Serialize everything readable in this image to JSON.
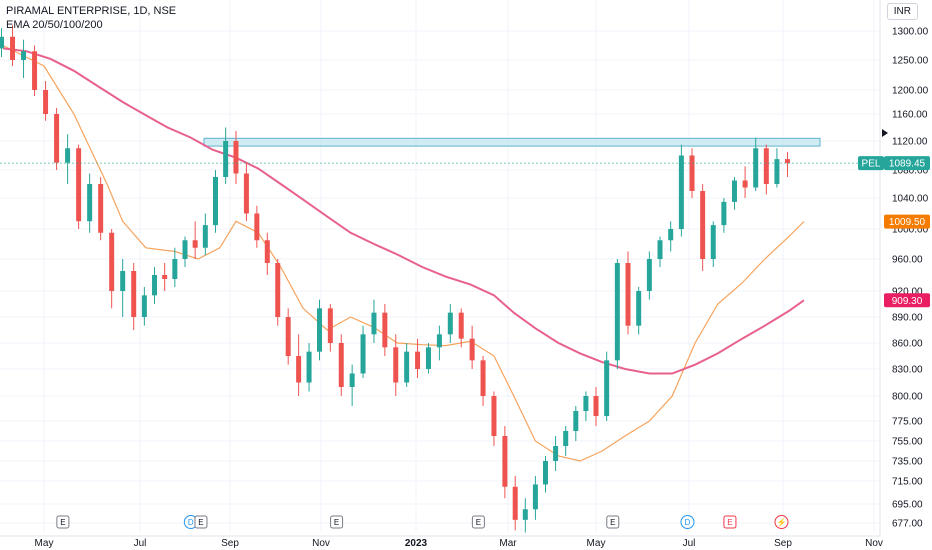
{
  "legend": {
    "symbol_line": "PIRAMAL ENTERPRISE, 1D, NSE",
    "indicator_line": "EMA 20/50/100/200"
  },
  "currency": "INR",
  "chart_data": {
    "type": "candlestick",
    "symbol": "PEL",
    "y_ticks": [
      677,
      695,
      715,
      735,
      755,
      775,
      800,
      830,
      860,
      890,
      920,
      960,
      1000,
      1040,
      1080,
      1120,
      1160,
      1200,
      1250,
      1300
    ],
    "y_tick_labels": [
      "677.00",
      "695.00",
      "715.00",
      "735.00",
      "755.00",
      "775.00",
      "800.00",
      "830.00",
      "860.00",
      "890.00",
      "920.00",
      "960.00",
      "1000.00",
      "1040.00",
      "1080.00",
      "1120.00",
      "1160.00",
      "1200.00",
      "1250.00",
      "1300.00"
    ],
    "x_labels": [
      "May",
      "Jul",
      "Sep",
      "Nov",
      "2023",
      "Mar",
      "May",
      "Jul",
      "Sep",
      "Nov"
    ],
    "x_dates": [
      "2022-05-01",
      "2022-07-01",
      "2022-09-01",
      "2022-11-01",
      "2023-01-01",
      "2023-03-01",
      "2023-05-01",
      "2023-07-01",
      "2023-09-01",
      "2023-11-01"
    ],
    "last_price": {
      "symbol": "PEL",
      "value": 1089.45,
      "label": "1089.45",
      "color": "#26a69a"
    },
    "price_labels": [
      {
        "value": 1009.5,
        "label": "1009.50",
        "color": "#f57c00"
      },
      {
        "value": 909.3,
        "label": "909.30",
        "color": "#e91e63"
      }
    ],
    "resistance_zone": {
      "low": 1113,
      "high": 1124,
      "color": "#b2dfeb"
    },
    "series": [
      {
        "name": "EMA 20",
        "color": "#f7a35c",
        "points": [
          [
            "2022-04-05",
            1275
          ],
          [
            "2022-05-01",
            1240
          ],
          [
            "2022-05-20",
            1160
          ],
          [
            "2022-06-10",
            1060
          ],
          [
            "2022-06-20",
            1010
          ],
          [
            "2022-07-05",
            975
          ],
          [
            "2022-07-25",
            970
          ],
          [
            "2022-08-10",
            960
          ],
          [
            "2022-08-25",
            975
          ],
          [
            "2022-09-05",
            1010
          ],
          [
            "2022-09-20",
            995
          ],
          [
            "2022-10-05",
            950
          ],
          [
            "2022-10-20",
            900
          ],
          [
            "2022-11-05",
            875
          ],
          [
            "2022-11-20",
            890
          ],
          [
            "2022-12-05",
            878
          ],
          [
            "2022-12-20",
            860
          ],
          [
            "2023-01-05",
            858
          ],
          [
            "2023-01-20",
            857
          ],
          [
            "2023-02-05",
            862
          ],
          [
            "2023-02-20",
            845
          ],
          [
            "2023-03-05",
            800
          ],
          [
            "2023-03-20",
            755
          ],
          [
            "2023-04-05",
            740
          ],
          [
            "2023-04-20",
            735
          ],
          [
            "2023-05-05",
            745
          ],
          [
            "2023-05-20",
            760
          ],
          [
            "2023-06-05",
            775
          ],
          [
            "2023-06-20",
            800
          ],
          [
            "2023-07-05",
            860
          ],
          [
            "2023-07-20",
            905
          ],
          [
            "2023-08-05",
            930
          ],
          [
            "2023-08-20",
            960
          ],
          [
            "2023-09-05",
            990
          ],
          [
            "2023-09-15",
            1009.5
          ]
        ]
      },
      {
        "name": "EMA 50",
        "color": "#e8608c",
        "points": [
          [
            "2022-04-05",
            1270
          ],
          [
            "2022-04-20",
            1265
          ],
          [
            "2022-05-05",
            1252
          ],
          [
            "2022-05-20",
            1232
          ],
          [
            "2022-06-05",
            1205
          ],
          [
            "2022-06-20",
            1180
          ],
          [
            "2022-07-05",
            1158
          ],
          [
            "2022-07-20",
            1140
          ],
          [
            "2022-08-05",
            1125
          ],
          [
            "2022-08-20",
            1108
          ],
          [
            "2022-09-05",
            1097
          ],
          [
            "2022-09-20",
            1082
          ],
          [
            "2022-10-05",
            1060
          ],
          [
            "2022-10-20",
            1038
          ],
          [
            "2022-11-05",
            1016
          ],
          [
            "2022-11-20",
            995
          ],
          [
            "2022-12-05",
            980
          ],
          [
            "2022-12-20",
            966
          ],
          [
            "2023-01-05",
            950
          ],
          [
            "2023-01-20",
            938
          ],
          [
            "2023-02-05",
            928
          ],
          [
            "2023-02-20",
            915
          ],
          [
            "2023-03-05",
            895
          ],
          [
            "2023-03-20",
            877
          ],
          [
            "2023-04-05",
            860
          ],
          [
            "2023-04-20",
            848
          ],
          [
            "2023-05-05",
            838
          ],
          [
            "2023-05-20",
            830
          ],
          [
            "2023-06-05",
            825
          ],
          [
            "2023-06-20",
            825
          ],
          [
            "2023-07-05",
            835
          ],
          [
            "2023-07-20",
            848
          ],
          [
            "2023-08-05",
            865
          ],
          [
            "2023-08-20",
            880
          ],
          [
            "2023-09-05",
            897
          ],
          [
            "2023-09-15",
            909.3
          ]
        ]
      }
    ],
    "candles": [
      [
        "2022-04-04",
        1270,
        1305,
        1255,
        1290
      ],
      [
        "2022-04-11",
        1290,
        1310,
        1240,
        1250
      ],
      [
        "2022-04-18",
        1250,
        1285,
        1220,
        1265
      ],
      [
        "2022-04-25",
        1265,
        1275,
        1190,
        1200
      ],
      [
        "2022-05-02",
        1200,
        1215,
        1150,
        1160
      ],
      [
        "2022-05-09",
        1160,
        1170,
        1080,
        1090
      ],
      [
        "2022-05-16",
        1090,
        1130,
        1060,
        1110
      ],
      [
        "2022-05-23",
        1110,
        1115,
        1000,
        1010
      ],
      [
        "2022-05-30",
        1010,
        1075,
        995,
        1060
      ],
      [
        "2022-06-06",
        1060,
        1070,
        985,
        995
      ],
      [
        "2022-06-13",
        995,
        1000,
        900,
        920
      ],
      [
        "2022-06-20",
        920,
        960,
        890,
        945
      ],
      [
        "2022-06-27",
        945,
        955,
        875,
        890
      ],
      [
        "2022-07-04",
        890,
        925,
        880,
        915
      ],
      [
        "2022-07-11",
        915,
        950,
        905,
        940
      ],
      [
        "2022-07-18",
        940,
        955,
        920,
        935
      ],
      [
        "2022-07-25",
        935,
        975,
        925,
        960
      ],
      [
        "2022-08-01",
        960,
        990,
        950,
        985
      ],
      [
        "2022-08-08",
        985,
        1010,
        960,
        975
      ],
      [
        "2022-08-15",
        975,
        1020,
        965,
        1005
      ],
      [
        "2022-08-22",
        1005,
        1080,
        995,
        1070
      ],
      [
        "2022-08-29",
        1070,
        1140,
        1060,
        1120
      ],
      [
        "2022-09-05",
        1120,
        1135,
        1060,
        1075
      ],
      [
        "2022-09-12",
        1075,
        1090,
        1010,
        1020
      ],
      [
        "2022-09-19",
        1020,
        1030,
        975,
        985
      ],
      [
        "2022-09-26",
        985,
        995,
        940,
        955
      ],
      [
        "2022-10-03",
        955,
        960,
        880,
        890
      ],
      [
        "2022-10-10",
        890,
        900,
        835,
        845
      ],
      [
        "2022-10-17",
        845,
        870,
        800,
        815
      ],
      [
        "2022-10-24",
        815,
        860,
        805,
        850
      ],
      [
        "2022-10-31",
        850,
        910,
        840,
        900
      ],
      [
        "2022-11-07",
        900,
        905,
        850,
        860
      ],
      [
        "2022-11-14",
        860,
        870,
        800,
        810
      ],
      [
        "2022-11-21",
        810,
        835,
        790,
        825
      ],
      [
        "2022-11-28",
        825,
        880,
        820,
        870
      ],
      [
        "2022-12-05",
        870,
        910,
        860,
        895
      ],
      [
        "2022-12-12",
        895,
        905,
        845,
        855
      ],
      [
        "2022-12-19",
        855,
        870,
        800,
        815
      ],
      [
        "2022-12-26",
        815,
        860,
        810,
        850
      ],
      [
        "2023-01-02",
        850,
        865,
        820,
        830
      ],
      [
        "2023-01-09",
        830,
        860,
        825,
        855
      ],
      [
        "2023-01-16",
        855,
        880,
        840,
        870
      ],
      [
        "2023-01-23",
        870,
        905,
        860,
        895
      ],
      [
        "2023-01-30",
        895,
        900,
        855,
        865
      ],
      [
        "2023-02-06",
        865,
        880,
        830,
        840
      ],
      [
        "2023-02-13",
        840,
        845,
        790,
        800
      ],
      [
        "2023-02-20",
        800,
        805,
        750,
        760
      ],
      [
        "2023-02-27",
        760,
        770,
        700,
        710
      ],
      [
        "2023-03-06",
        710,
        720,
        670,
        680
      ],
      [
        "2023-03-13",
        680,
        700,
        668,
        690
      ],
      [
        "2023-03-20",
        690,
        720,
        680,
        712
      ],
      [
        "2023-03-27",
        712,
        740,
        705,
        735
      ],
      [
        "2023-04-03",
        735,
        760,
        725,
        750
      ],
      [
        "2023-04-10",
        750,
        770,
        740,
        765
      ],
      [
        "2023-04-17",
        765,
        790,
        755,
        785
      ],
      [
        "2023-04-24",
        785,
        805,
        775,
        800
      ],
      [
        "2023-05-01",
        800,
        810,
        770,
        780
      ],
      [
        "2023-05-08",
        780,
        850,
        775,
        840
      ],
      [
        "2023-05-15",
        840,
        960,
        830,
        955
      ],
      [
        "2023-05-22",
        955,
        970,
        870,
        880
      ],
      [
        "2023-05-29",
        880,
        925,
        870,
        920
      ],
      [
        "2023-06-05",
        920,
        970,
        910,
        960
      ],
      [
        "2023-06-12",
        960,
        990,
        950,
        985
      ],
      [
        "2023-06-19",
        985,
        1010,
        970,
        1000
      ],
      [
        "2023-06-26",
        1000,
        1115,
        990,
        1100
      ],
      [
        "2023-07-03",
        1100,
        1110,
        1040,
        1050
      ],
      [
        "2023-07-10",
        1050,
        1060,
        945,
        960
      ],
      [
        "2023-07-17",
        960,
        1010,
        950,
        1005
      ],
      [
        "2023-07-24",
        1005,
        1040,
        995,
        1035
      ],
      [
        "2023-07-31",
        1035,
        1070,
        1025,
        1065
      ],
      [
        "2023-08-07",
        1065,
        1085,
        1040,
        1055
      ],
      [
        "2023-08-14",
        1055,
        1125,
        1050,
        1110
      ],
      [
        "2023-08-21",
        1110,
        1115,
        1045,
        1060
      ],
      [
        "2023-08-28",
        1060,
        1110,
        1055,
        1095
      ],
      [
        "2023-09-04",
        1095,
        1105,
        1070,
        1089.45
      ]
    ],
    "events": [
      {
        "date": "2022-05-13",
        "label": "E",
        "type": "earnings"
      },
      {
        "date": "2022-08-05",
        "label": "D",
        "type": "dividend"
      },
      {
        "date": "2022-08-12",
        "label": "E",
        "type": "earnings"
      },
      {
        "date": "2022-11-11",
        "label": "E",
        "type": "earnings"
      },
      {
        "date": "2023-02-10",
        "label": "E",
        "type": "earnings"
      },
      {
        "date": "2023-05-12",
        "label": "E",
        "type": "earnings"
      },
      {
        "date": "2023-06-30",
        "label": "D",
        "type": "dividend"
      },
      {
        "date": "2023-07-28",
        "label": "E",
        "type": "earnings-upcoming"
      },
      {
        "date": "2023-08-31",
        "label": "⚡",
        "type": "split"
      }
    ]
  }
}
